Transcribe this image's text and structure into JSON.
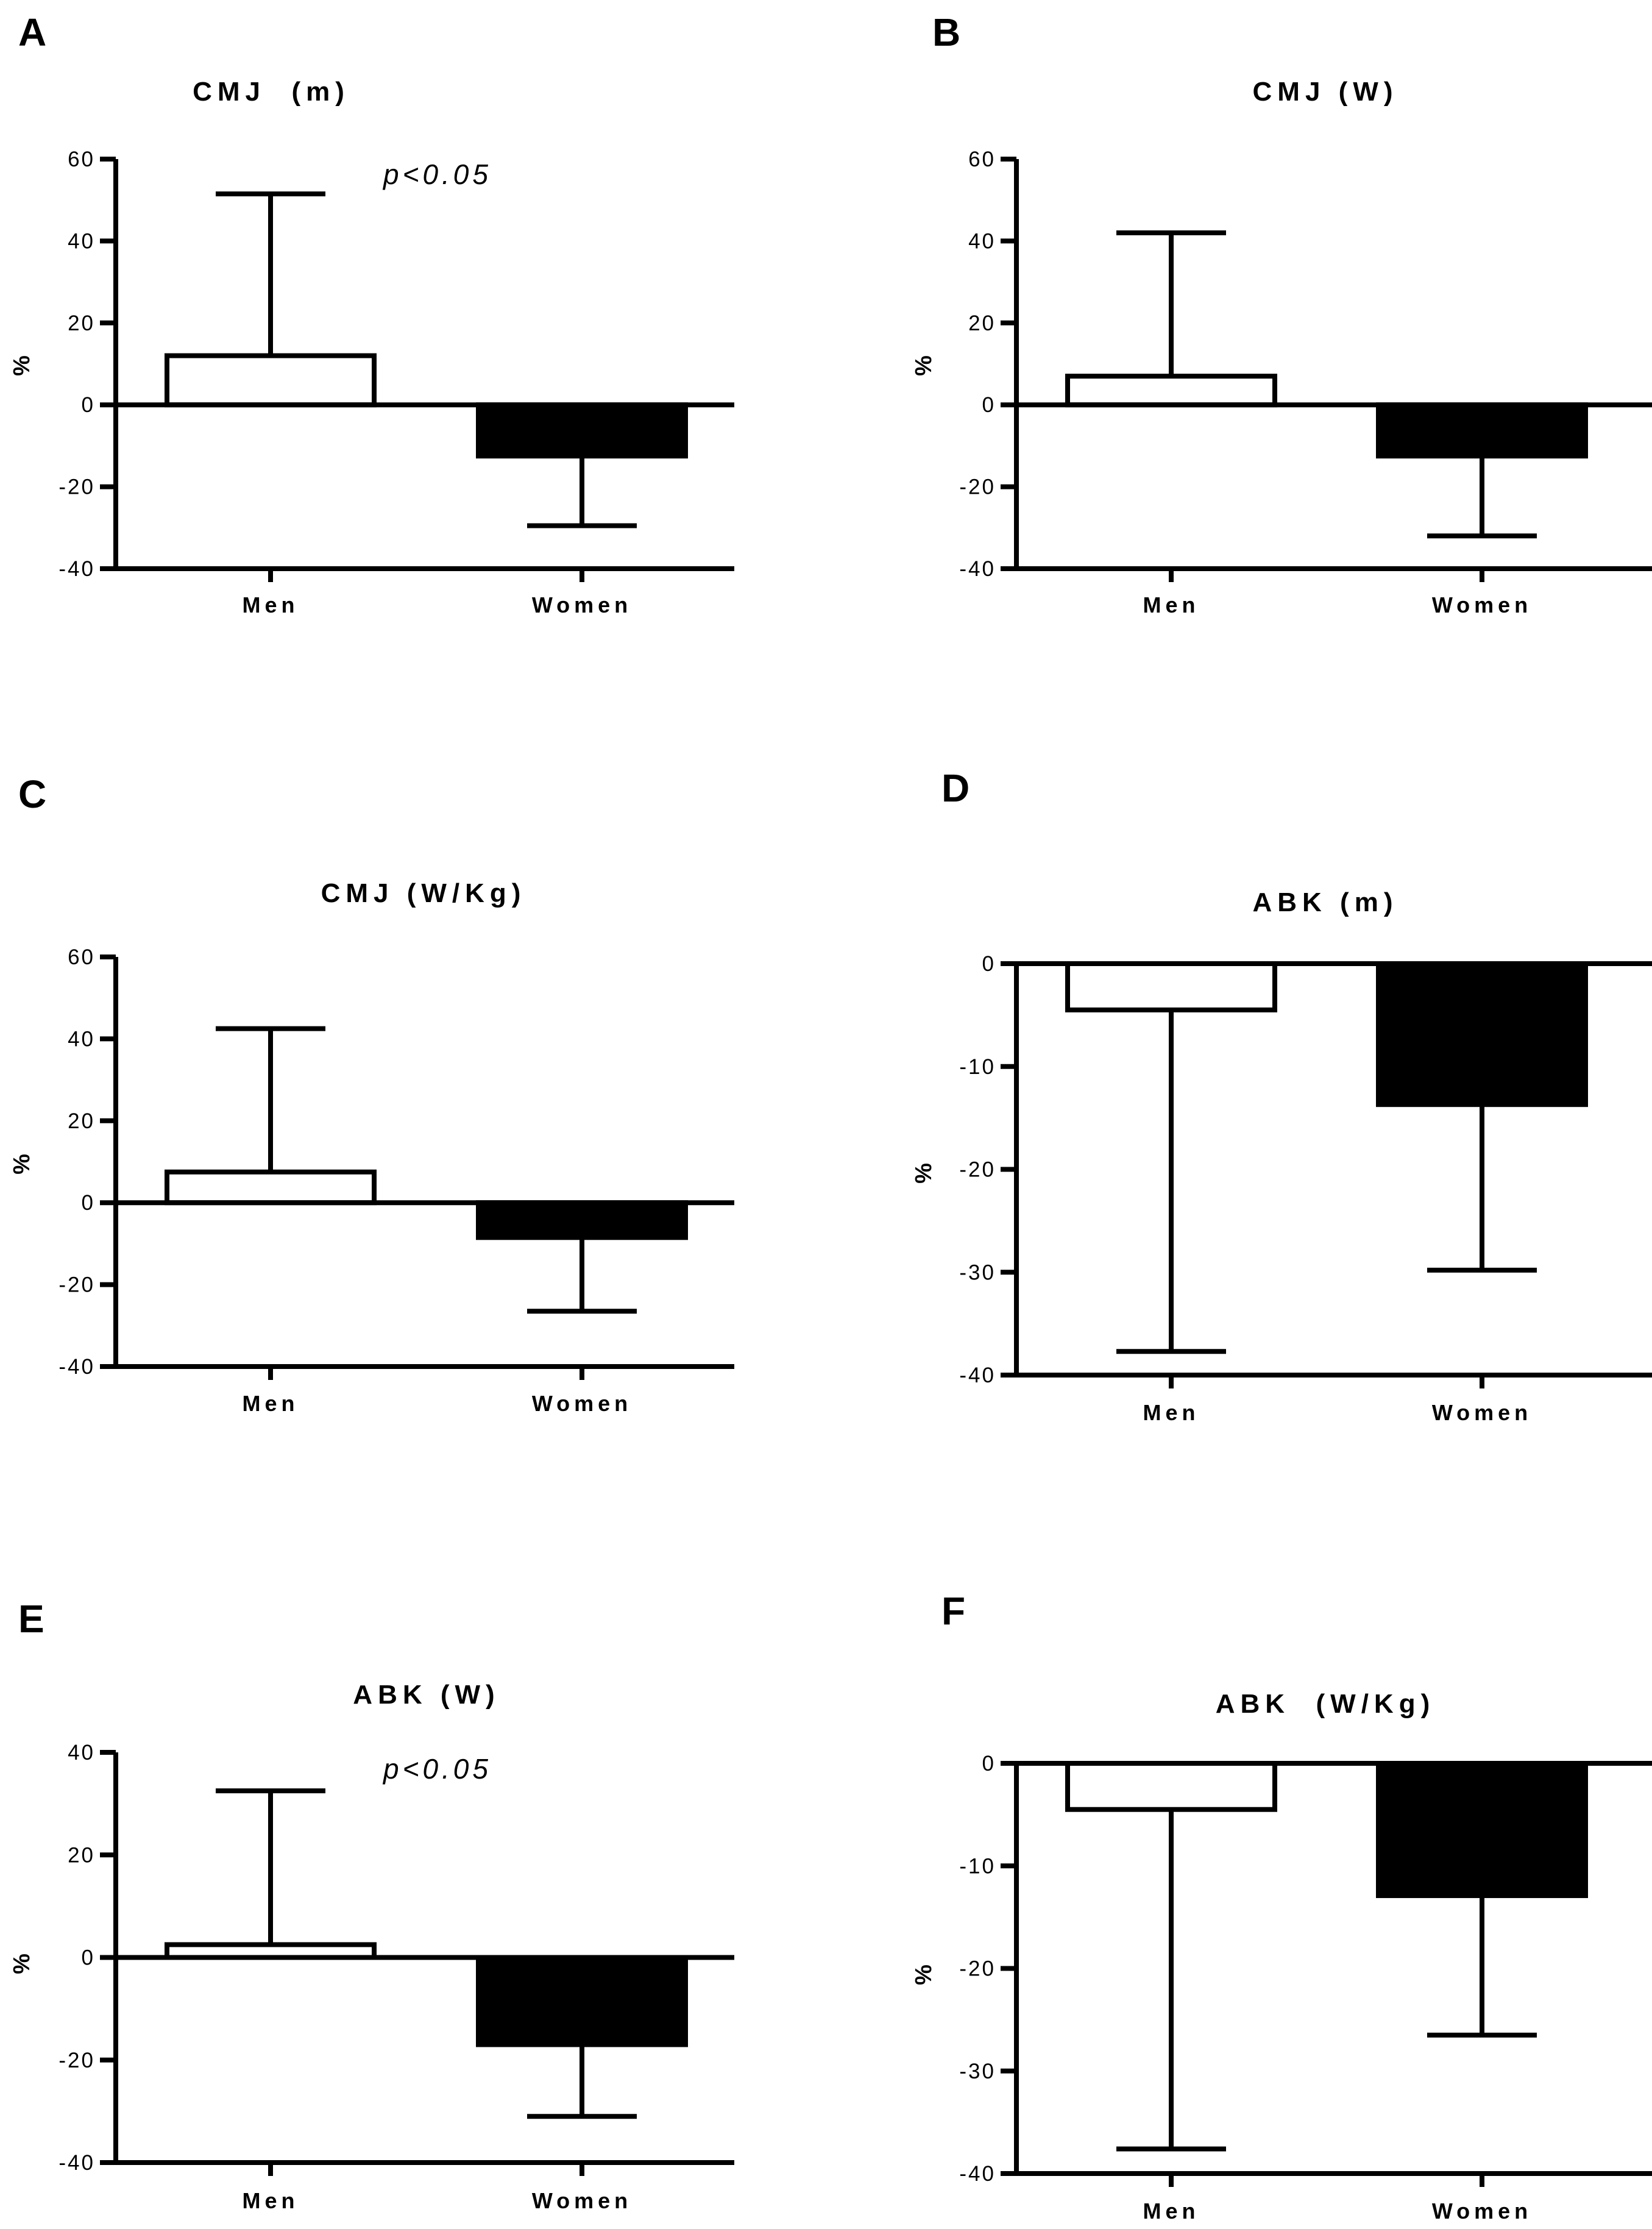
{
  "chart_data": [
    {
      "type": "bar",
      "panel": "A",
      "title": "CMJ  (m)",
      "categories": [
        "Men",
        "Women"
      ],
      "values": [
        12,
        -12.5
      ],
      "error_bars": [
        51.5,
        -29.5
      ],
      "ylabel": "%",
      "ylim": [
        -40,
        60
      ],
      "yticks": [
        "-40",
        "-20",
        "0",
        "20",
        "40",
        "60"
      ],
      "annotation": "p<0.05",
      "colors": [
        "#ffffff",
        "#000000"
      ]
    },
    {
      "type": "bar",
      "panel": "B",
      "title": "CMJ (W)",
      "categories": [
        "Men",
        "Women"
      ],
      "values": [
        7,
        -12.5
      ],
      "error_bars": [
        42,
        -32
      ],
      "ylabel": "%",
      "ylim": [
        -40,
        60
      ],
      "yticks": [
        "-40",
        "-20",
        "0",
        "20",
        "40",
        "60"
      ],
      "annotation": "",
      "colors": [
        "#ffffff",
        "#000000"
      ]
    },
    {
      "type": "bar",
      "panel": "C",
      "title": "CMJ (W/Kg)",
      "categories": [
        "Men",
        "Women"
      ],
      "values": [
        7.5,
        -8.5
      ],
      "error_bars": [
        42.5,
        -26.5
      ],
      "ylabel": "%",
      "ylim": [
        -40,
        60
      ],
      "yticks": [
        "-40",
        "-20",
        "0",
        "20",
        "40",
        "60"
      ],
      "annotation": "",
      "colors": [
        "#ffffff",
        "#000000"
      ]
    },
    {
      "type": "bar",
      "panel": "D",
      "title": "ABK (m)",
      "categories": [
        "Men",
        "Women"
      ],
      "values": [
        -4.5,
        -13.7
      ],
      "error_bars": [
        -37.7,
        -29.8
      ],
      "ylabel": "%",
      "ylim": [
        -40,
        0
      ],
      "yticks": [
        "-40",
        "-30",
        "-20",
        "-10",
        "0"
      ],
      "annotation": "",
      "colors": [
        "#ffffff",
        "#000000"
      ]
    },
    {
      "type": "bar",
      "panel": "E",
      "title": "ABK (W)",
      "categories": [
        "Men",
        "Women"
      ],
      "values": [
        2.5,
        -17
      ],
      "error_bars": [
        32.5,
        -31
      ],
      "ylabel": "%",
      "ylim": [
        -40,
        40
      ],
      "yticks": [
        "-40",
        "-20",
        "0",
        "20",
        "40"
      ],
      "annotation": "p<0.05",
      "colors": [
        "#ffffff",
        "#000000"
      ]
    },
    {
      "type": "bar",
      "panel": "F",
      "title": "ABK  (W/Kg)",
      "categories": [
        "Men",
        "Women"
      ],
      "values": [
        -4.5,
        -12.9
      ],
      "error_bars": [
        -37.6,
        -26.5
      ],
      "ylabel": "%",
      "ylim": [
        -40,
        0
      ],
      "yticks": [
        "-40",
        "-30",
        "-20",
        "-10",
        "0"
      ],
      "annotation": "",
      "colors": [
        "#ffffff",
        "#000000"
      ]
    }
  ]
}
